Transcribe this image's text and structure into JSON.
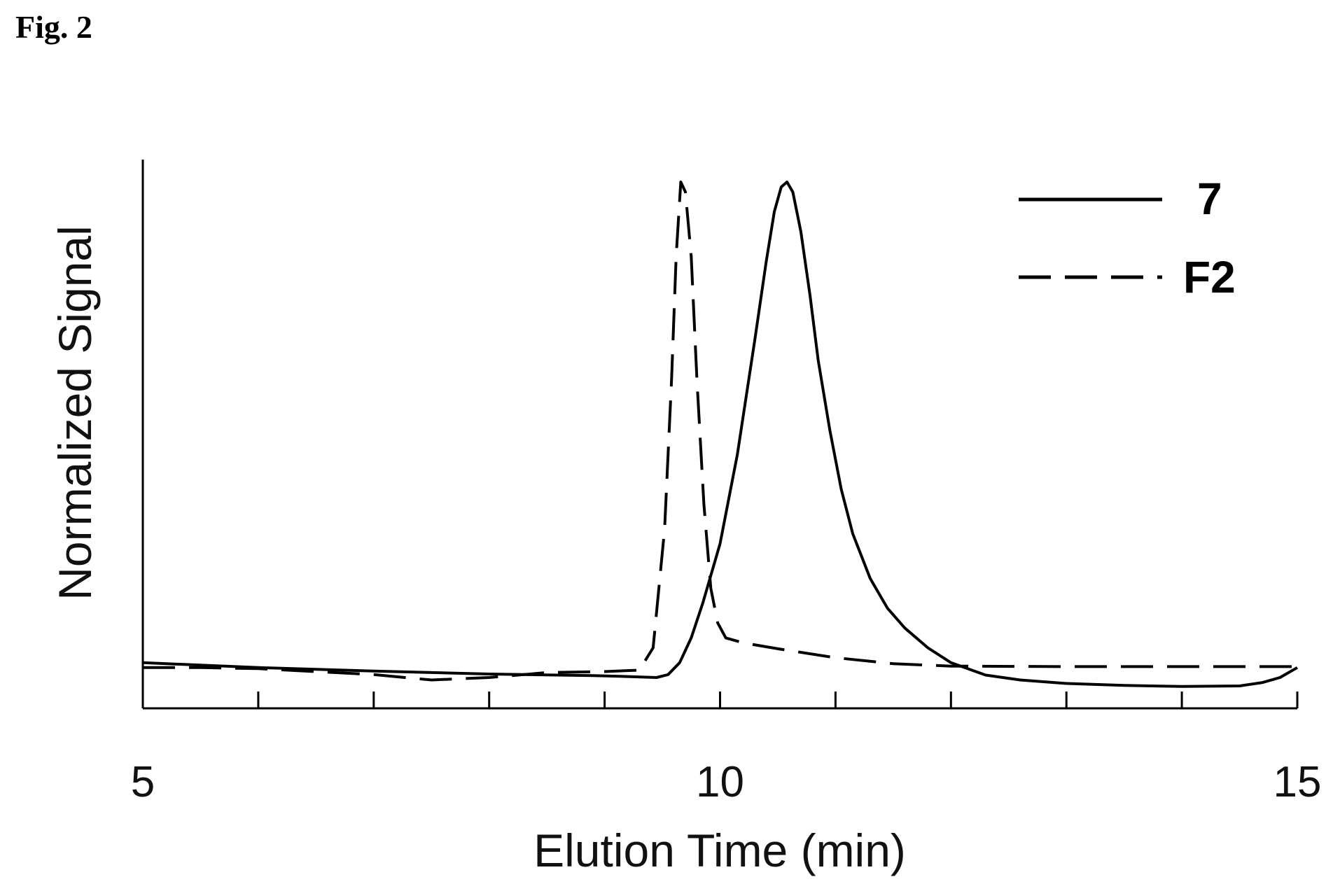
{
  "figure_label": "Fig. 2",
  "chart_data": {
    "type": "line",
    "xlabel": "Elution Time (min)",
    "ylabel": "Normalized Signal",
    "xlim": [
      5,
      15
    ],
    "ylim": [
      -0.05,
      1.0
    ],
    "x_ticks": [
      5,
      10,
      15
    ],
    "minor_x_ticks": [
      6,
      7,
      8,
      9,
      10,
      11,
      12,
      13,
      14
    ],
    "grid": false,
    "legend_position": "top-right",
    "series": [
      {
        "name": "7",
        "style": "solid",
        "color": "#000000",
        "points": [
          [
            5.0,
            0.03
          ],
          [
            6.0,
            0.02
          ],
          [
            7.0,
            0.013
          ],
          [
            8.0,
            0.007
          ],
          [
            8.9,
            0.004
          ],
          [
            9.2,
            0.002
          ],
          [
            9.45,
            0.0
          ],
          [
            9.55,
            0.006
          ],
          [
            9.65,
            0.03
          ],
          [
            9.75,
            0.08
          ],
          [
            9.85,
            0.15
          ],
          [
            10.0,
            0.27
          ],
          [
            10.15,
            0.45
          ],
          [
            10.3,
            0.68
          ],
          [
            10.4,
            0.84
          ],
          [
            10.47,
            0.94
          ],
          [
            10.53,
            0.99
          ],
          [
            10.58,
            1.0
          ],
          [
            10.63,
            0.98
          ],
          [
            10.7,
            0.9
          ],
          [
            10.78,
            0.77
          ],
          [
            10.85,
            0.64
          ],
          [
            10.95,
            0.5
          ],
          [
            11.05,
            0.38
          ],
          [
            11.15,
            0.29
          ],
          [
            11.3,
            0.2
          ],
          [
            11.45,
            0.14
          ],
          [
            11.6,
            0.1
          ],
          [
            11.8,
            0.06
          ],
          [
            12.0,
            0.03
          ],
          [
            12.3,
            0.005
          ],
          [
            12.6,
            -0.005
          ],
          [
            13.0,
            -0.012
          ],
          [
            13.5,
            -0.016
          ],
          [
            14.0,
            -0.018
          ],
          [
            14.5,
            -0.017
          ],
          [
            14.7,
            -0.01
          ],
          [
            14.85,
            0.0
          ],
          [
            15.0,
            0.02
          ]
        ]
      },
      {
        "name": "F2",
        "style": "dashed",
        "color": "#000000",
        "points": [
          [
            5.0,
            0.02
          ],
          [
            5.5,
            0.02
          ],
          [
            6.0,
            0.018
          ],
          [
            6.5,
            0.012
          ],
          [
            7.0,
            0.006
          ],
          [
            7.5,
            -0.005
          ],
          [
            8.0,
            0.0
          ],
          [
            8.5,
            0.01
          ],
          [
            9.0,
            0.012
          ],
          [
            9.3,
            0.015
          ],
          [
            9.42,
            0.06
          ],
          [
            9.52,
            0.3
          ],
          [
            9.58,
            0.6
          ],
          [
            9.62,
            0.85
          ],
          [
            9.66,
            1.0
          ],
          [
            9.7,
            0.98
          ],
          [
            9.75,
            0.85
          ],
          [
            9.8,
            0.6
          ],
          [
            9.86,
            0.35
          ],
          [
            9.92,
            0.18
          ],
          [
            9.98,
            0.11
          ],
          [
            10.05,
            0.08
          ],
          [
            10.2,
            0.07
          ],
          [
            10.5,
            0.058
          ],
          [
            11.0,
            0.04
          ],
          [
            11.5,
            0.028
          ],
          [
            12.0,
            0.023
          ],
          [
            13.0,
            0.022
          ],
          [
            14.0,
            0.022
          ],
          [
            15.0,
            0.022
          ]
        ]
      }
    ]
  }
}
